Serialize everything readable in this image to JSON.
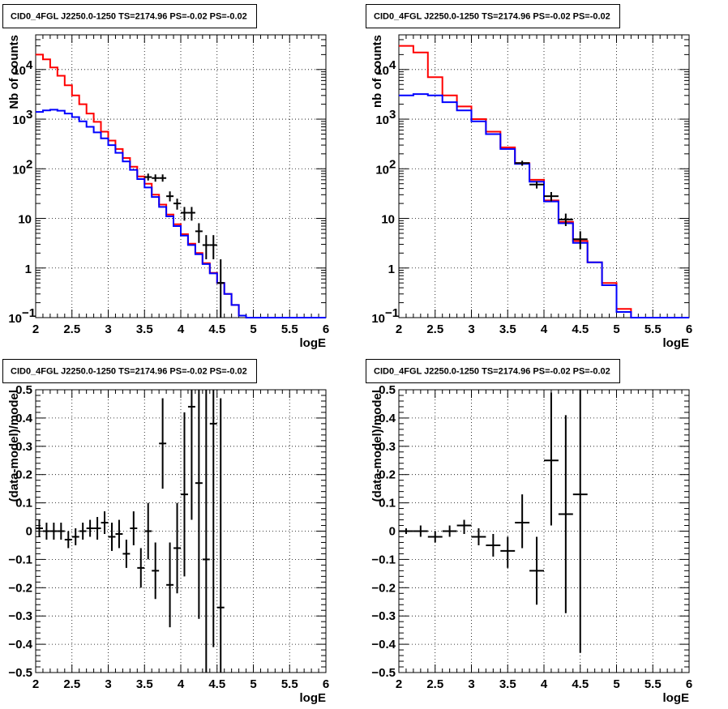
{
  "chart_data": [
    {
      "type": "line",
      "title": "CID0_4FGL J2250.0-1250 TS=2174.96 PS=-0.02 PS=-0.02",
      "xlabel": "logE",
      "ylabel": "Nb of counts",
      "xlim": [
        2,
        6
      ],
      "ylim": [
        0.1,
        50000
      ],
      "yscale": "log",
      "grid": true,
      "xticks": [
        "2",
        "2.5",
        "3",
        "3.5",
        "4",
        "4.5",
        "5",
        "5.5",
        "6"
      ],
      "yticks": [
        {
          "v": 0.1,
          "label": "10",
          "exp": "−1"
        },
        {
          "v": 1,
          "label": "1",
          "exp": ""
        },
        {
          "v": 10,
          "label": "10",
          "exp": ""
        },
        {
          "v": 100,
          "label": "10",
          "exp": "2"
        },
        {
          "v": 1000,
          "label": "10",
          "exp": "3"
        },
        {
          "v": 10000,
          "label": "10",
          "exp": "4"
        }
      ],
      "binwidth": 0.1,
      "series": [
        {
          "color": "#ff0000",
          "style": "hist",
          "x": [
            2.0,
            2.1,
            2.2,
            2.3,
            2.4,
            2.5,
            2.6,
            2.7,
            2.8,
            2.9,
            3.0,
            3.1,
            3.2,
            3.3,
            3.4,
            3.5,
            3.6,
            3.7,
            3.8,
            3.9,
            4.0,
            4.1,
            4.2,
            4.3,
            4.4,
            4.5,
            4.6,
            4.7,
            4.8,
            4.9,
            5.0,
            5.1,
            5.2,
            5.3,
            5.4,
            5.5,
            5.6,
            5.7,
            5.8,
            5.9
          ],
          "values": [
            20000,
            16000,
            11000,
            7500,
            4800,
            3000,
            2000,
            1300,
            880,
            560,
            370,
            250,
            165,
            110,
            70,
            50,
            30,
            19,
            12,
            7.6,
            4.8,
            3.1,
            2.0,
            1.25,
            0.8,
            0.5,
            0.3,
            0.18,
            0.11,
            0.1,
            0.1,
            0.1,
            0.1,
            0.1,
            0.1,
            0.1,
            0.1,
            0.1,
            0.1,
            0.1
          ]
        },
        {
          "color": "#0000ff",
          "style": "hist",
          "x": [
            2.0,
            2.1,
            2.2,
            2.3,
            2.4,
            2.5,
            2.6,
            2.7,
            2.8,
            2.9,
            3.0,
            3.1,
            3.2,
            3.3,
            3.4,
            3.5,
            3.6,
            3.7,
            3.8,
            3.9,
            4.0,
            4.1,
            4.2,
            4.3,
            4.4,
            4.5,
            4.6,
            4.7,
            4.8,
            4.9,
            5.0,
            5.1,
            5.2,
            5.3,
            5.4,
            5.5,
            5.6,
            5.7,
            5.8,
            5.9
          ],
          "values": [
            1400,
            1500,
            1550,
            1480,
            1300,
            1100,
            900,
            700,
            540,
            410,
            300,
            210,
            140,
            95,
            62,
            42,
            27,
            17,
            11,
            7,
            4.5,
            2.9,
            1.9,
            1.2,
            0.78,
            0.5,
            0.3,
            0.18,
            0.11,
            0.1,
            0.1,
            0.1,
            0.1,
            0.1,
            0.1,
            0.1,
            0.1,
            0.1,
            0.1,
            0.1
          ]
        },
        {
          "color": "#000000",
          "style": "errorbar",
          "x": [
            3.55,
            3.65,
            3.75,
            3.85,
            3.95,
            4.05,
            4.15,
            4.25,
            4.35,
            4.45,
            4.55
          ],
          "values": [
            68,
            65,
            65,
            28,
            20,
            13,
            13,
            5.5,
            2.9,
            2.9,
            0.5
          ],
          "low": [
            58,
            55,
            55,
            22,
            15,
            9,
            9,
            3.2,
            1.5,
            1.5,
            0.05
          ],
          "high": [
            80,
            77,
            77,
            35,
            25,
            17,
            17,
            8,
            4.6,
            4.6,
            1.5
          ]
        }
      ]
    },
    {
      "type": "line",
      "title": "CID0_4FGL J2250.0-1250 TS=2174.96 PS=-0.02 PS=-0.02",
      "xlabel": "logE",
      "ylabel": "nb of counts",
      "xlim": [
        2,
        6
      ],
      "ylim": [
        0.1,
        50000
      ],
      "yscale": "log",
      "grid": true,
      "xticks": [
        "2",
        "2.5",
        "3",
        "3.5",
        "4",
        "4.5",
        "5",
        "5.5",
        "6"
      ],
      "yticks": [
        {
          "v": 0.1,
          "label": "10",
          "exp": "−1"
        },
        {
          "v": 1,
          "label": "1",
          "exp": ""
        },
        {
          "v": 10,
          "label": "10",
          "exp": ""
        },
        {
          "v": 100,
          "label": "10",
          "exp": "2"
        },
        {
          "v": 1000,
          "label": "10",
          "exp": "3"
        },
        {
          "v": 10000,
          "label": "10",
          "exp": "4"
        }
      ],
      "binwidth": 0.2,
      "series": [
        {
          "color": "#ff0000",
          "style": "hist",
          "x": [
            2.0,
            2.2,
            2.4,
            2.6,
            2.8,
            3.0,
            3.2,
            3.4,
            3.6,
            3.8,
            4.0,
            4.2,
            4.4,
            4.6,
            4.8,
            5.0,
            5.2,
            5.4,
            5.6,
            5.8
          ],
          "values": [
            30000,
            22000,
            7000,
            3000,
            1800,
            1000,
            560,
            270,
            130,
            60,
            23,
            8.5,
            3.5,
            1.3,
            0.5,
            0.15,
            0.1,
            0.1,
            0.1,
            0.1
          ]
        },
        {
          "color": "#0000ff",
          "style": "hist",
          "x": [
            2.0,
            2.2,
            2.4,
            2.6,
            2.8,
            3.0,
            3.2,
            3.4,
            3.6,
            3.8,
            4.0,
            4.2,
            4.4,
            4.6,
            4.8,
            5.0,
            5.2,
            5.4,
            5.6,
            5.8
          ],
          "values": [
            3000,
            3200,
            3000,
            2200,
            1500,
            900,
            500,
            250,
            125,
            55,
            22,
            8,
            3.2,
            1.3,
            0.45,
            0.13,
            0.1,
            0.1,
            0.1,
            0.1
          ]
        },
        {
          "color": "#000000",
          "style": "errorbar",
          "x": [
            3.7,
            3.9,
            4.1,
            4.3,
            4.5
          ],
          "values": [
            130,
            48,
            28,
            9.5,
            3.8
          ],
          "low": [
            115,
            40,
            22,
            7,
            2.4
          ],
          "high": [
            145,
            56,
            34,
            12.5,
            5.5
          ]
        }
      ]
    },
    {
      "type": "scatter",
      "title": "CID0_4FGL J2250.0-1250 TS=2174.96 PS=-0.02 PS=-0.02",
      "xlabel": "logE",
      "ylabel": "(data-model)/model",
      "xlim": [
        2,
        6
      ],
      "ylim": [
        -0.5,
        0.5
      ],
      "grid": true,
      "xticks": [
        "2",
        "2.5",
        "3",
        "3.5",
        "4",
        "4.5",
        "5",
        "5.5",
        "6"
      ],
      "yticks": [
        "−0.5",
        "−0.4",
        "−0.3",
        "−0.2",
        "−0.1",
        "0",
        "0.1",
        "0.2",
        "0.3",
        "0.4",
        "0.5"
      ],
      "binwidth": 0.1,
      "series": [
        {
          "color": "#000000",
          "style": "errorbar",
          "x": [
            2.05,
            2.15,
            2.25,
            2.35,
            2.45,
            2.55,
            2.65,
            2.75,
            2.85,
            2.95,
            3.05,
            3.15,
            3.25,
            3.35,
            3.45,
            3.55,
            3.65,
            3.75,
            3.85,
            3.95,
            4.05,
            4.15,
            4.25,
            4.35,
            4.45,
            4.55
          ],
          "values": [
            0.01,
            0.0,
            0.0,
            0.0,
            -0.03,
            -0.02,
            0.0,
            0.01,
            0.01,
            0.03,
            -0.02,
            -0.01,
            -0.08,
            0.01,
            -0.13,
            0.0,
            -0.14,
            0.31,
            -0.19,
            -0.06,
            0.13,
            0.44,
            0.17,
            -0.1,
            0.38,
            -0.27
          ],
          "low": [
            -0.02,
            -0.03,
            -0.03,
            -0.03,
            -0.06,
            -0.05,
            -0.03,
            -0.02,
            -0.03,
            -0.01,
            -0.07,
            -0.06,
            -0.13,
            -0.05,
            -0.2,
            -0.1,
            -0.24,
            0.15,
            -0.34,
            -0.22,
            -0.16,
            0.04,
            -0.31,
            -0.5,
            -0.41,
            -0.5
          ],
          "high": [
            0.04,
            0.03,
            0.03,
            0.03,
            0.0,
            0.01,
            0.03,
            0.04,
            0.05,
            0.07,
            0.03,
            0.04,
            -0.03,
            0.07,
            -0.06,
            0.1,
            -0.04,
            0.47,
            -0.04,
            0.1,
            0.42,
            0.5,
            0.5,
            0.5,
            0.5,
            0.47
          ]
        }
      ]
    },
    {
      "type": "scatter",
      "title": "CID0_4FGL J2250.0-1250 TS=2174.96 PS=-0.02 PS=-0.02",
      "xlabel": "logE",
      "ylabel": "(data-model)/model",
      "xlim": [
        2,
        6
      ],
      "ylim": [
        -0.5,
        0.5
      ],
      "grid": true,
      "xticks": [
        "2",
        "2.5",
        "3",
        "3.5",
        "4",
        "4.5",
        "5",
        "5.5",
        "6"
      ],
      "yticks": [
        "−0.5",
        "−0.4",
        "−0.3",
        "−0.2",
        "−0.1",
        "0",
        "0.1",
        "0.2",
        "0.3",
        "0.4",
        "0.5"
      ],
      "binwidth": 0.2,
      "series": [
        {
          "color": "#000000",
          "style": "errorbar",
          "x": [
            2.1,
            2.3,
            2.5,
            2.7,
            2.9,
            3.1,
            3.3,
            3.5,
            3.7,
            3.9,
            4.1,
            4.3,
            4.5
          ],
          "values": [
            0.0,
            0.0,
            -0.02,
            0.0,
            0.02,
            -0.02,
            -0.05,
            -0.07,
            0.03,
            -0.14,
            0.25,
            0.06,
            0.13
          ],
          "low": [
            -0.01,
            -0.02,
            -0.04,
            -0.02,
            -0.01,
            -0.05,
            -0.09,
            -0.13,
            -0.06,
            -0.26,
            0.02,
            -0.29,
            -0.43
          ],
          "high": [
            0.01,
            0.02,
            0.0,
            0.02,
            0.04,
            0.01,
            -0.01,
            -0.02,
            0.13,
            -0.02,
            0.49,
            0.41,
            0.5
          ]
        }
      ]
    }
  ]
}
